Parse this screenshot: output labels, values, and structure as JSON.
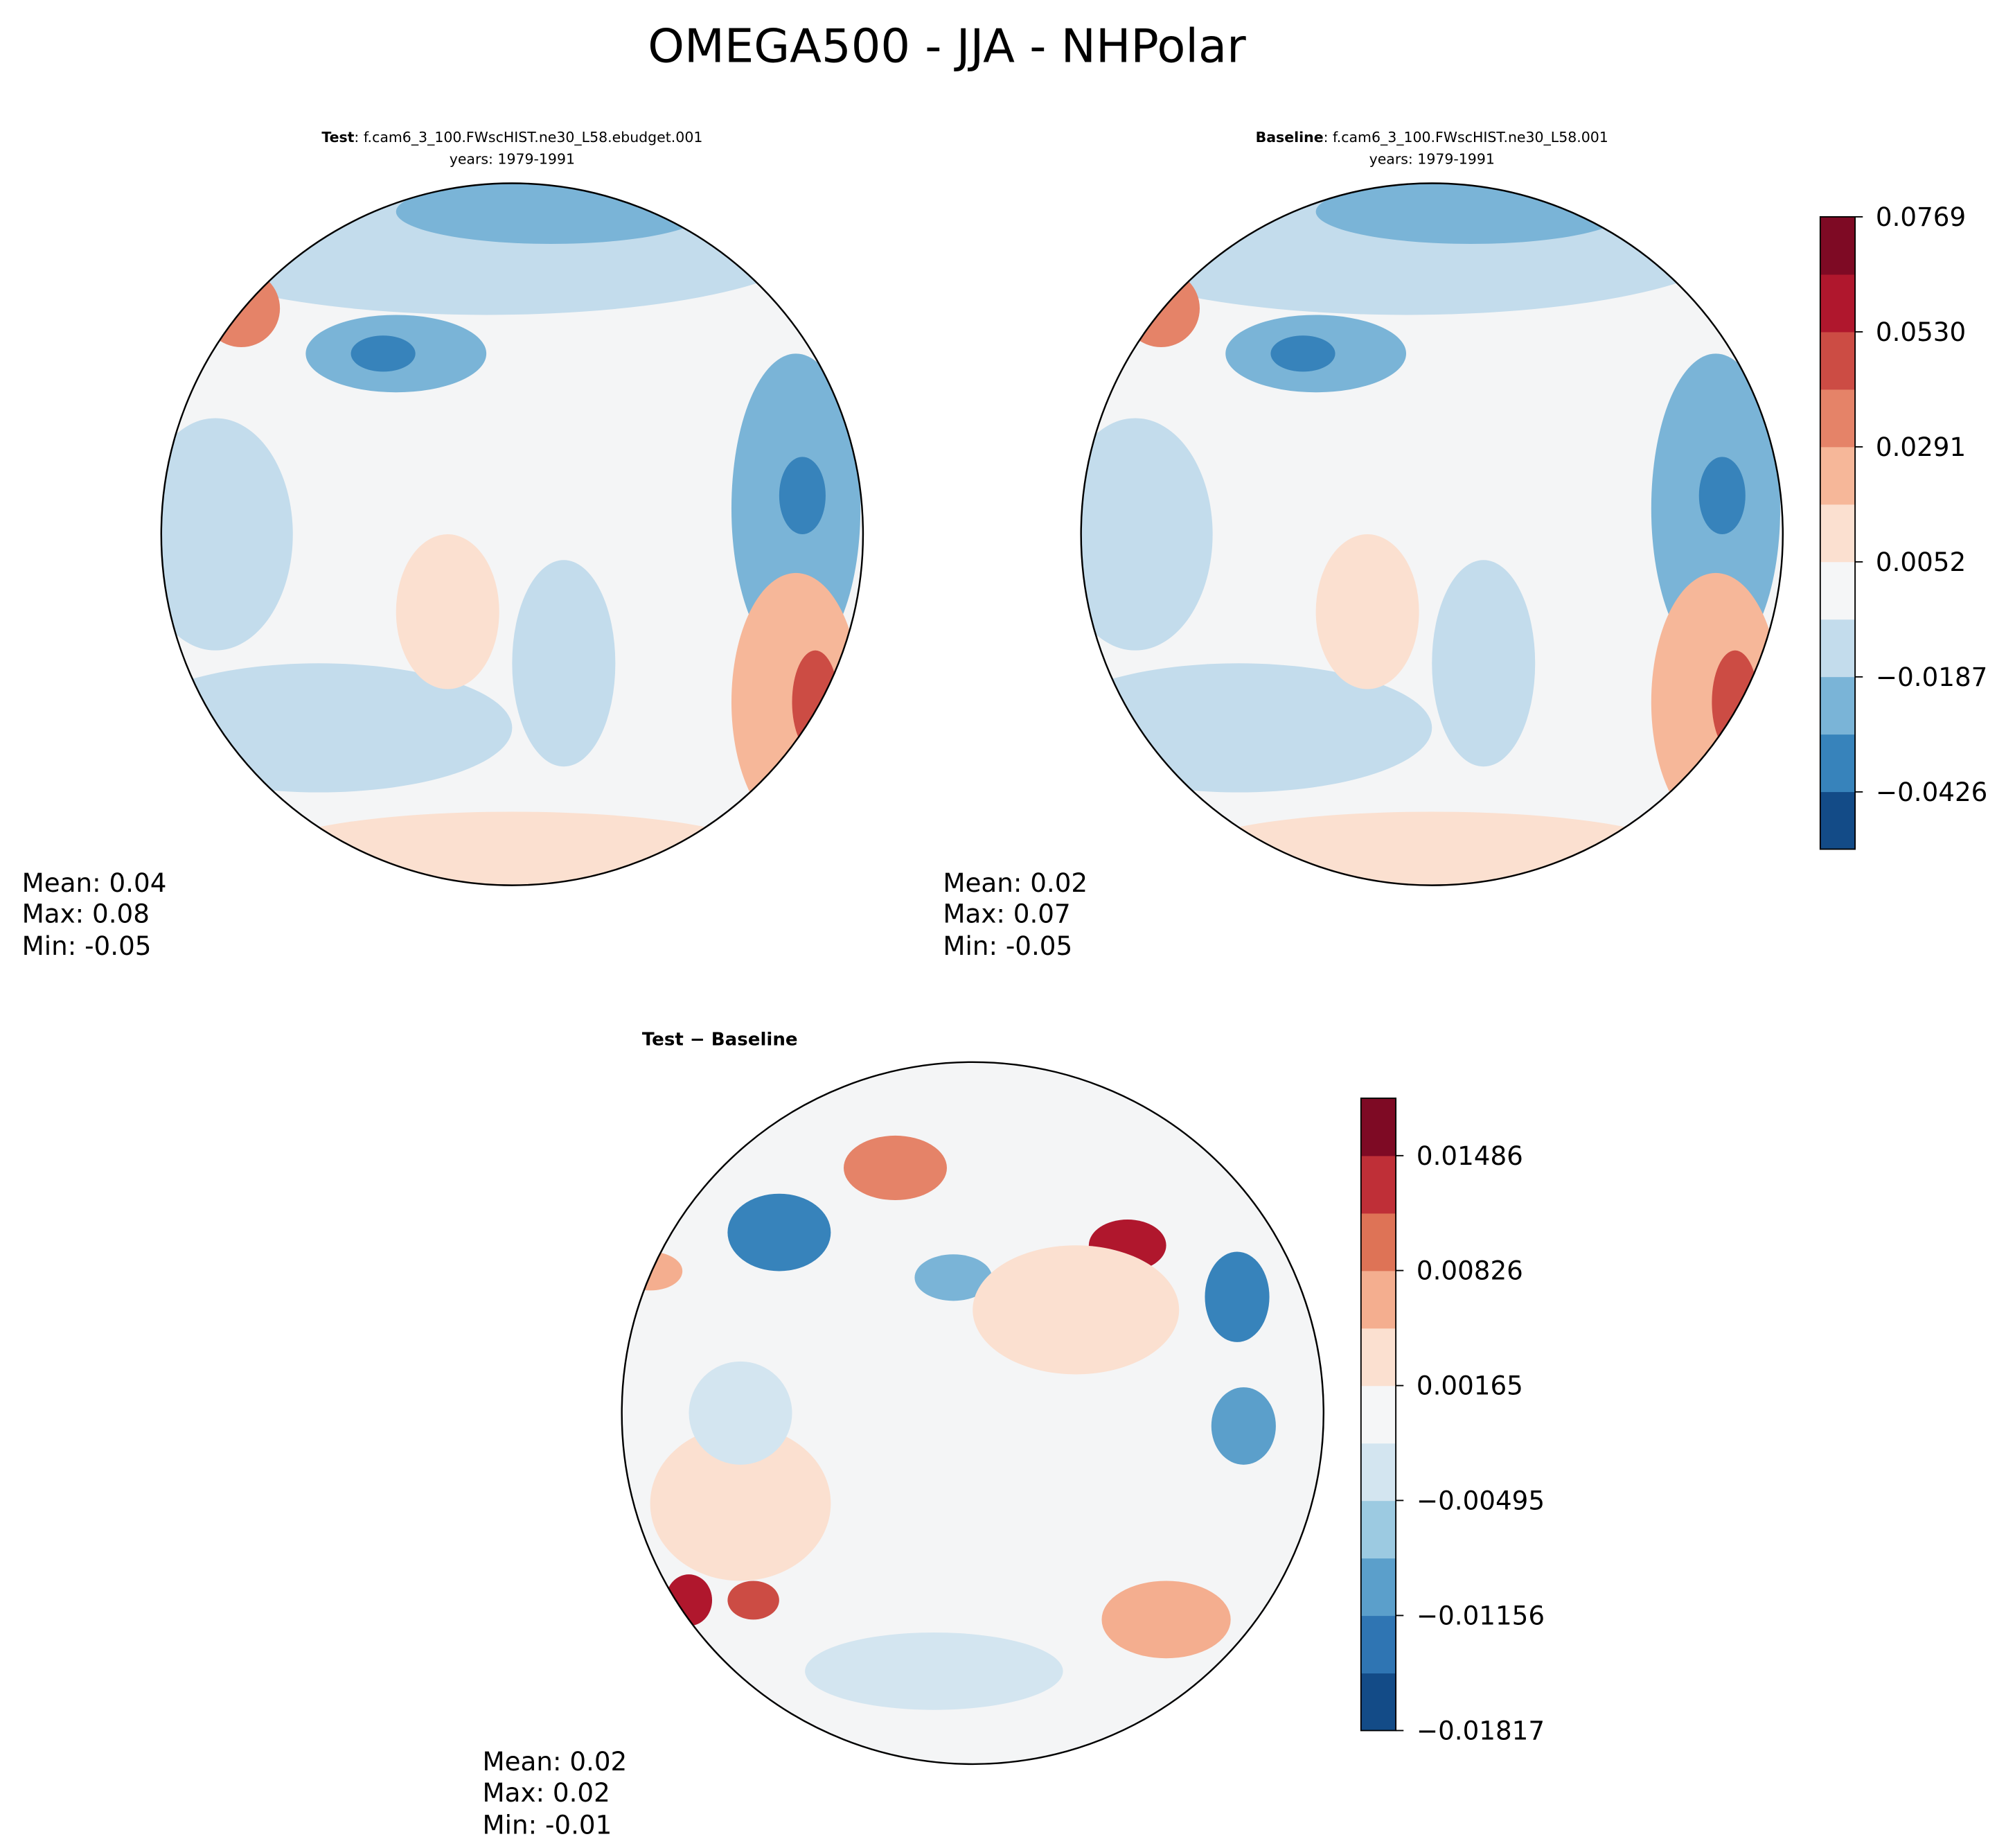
{
  "title": "OMEGA500 - JJA - NHPolar",
  "chart_data": [
    {
      "type": "map",
      "title_bold": "Test",
      "title": ": f.cam6_3_100.FWscHIST.ne30_L58.ebudget.001",
      "subtitle": "years: 1979-1991",
      "stats": [
        "Mean:  0.04",
        "Max:  0.08",
        "Min: -0.05"
      ]
    },
    {
      "type": "map",
      "title_bold": "Baseline",
      "title": ": f.cam6_3_100.FWscHIST.ne30_L58.001",
      "subtitle": "years: 1979-1991",
      "stats": [
        "Mean:  0.02",
        "Max:  0.07",
        "Min: -0.05"
      ]
    },
    {
      "type": "map",
      "title_bold": "Test − Baseline",
      "stats": [
        "Mean:  0.02",
        "Max:  0.02",
        "Min: -0.01"
      ]
    },
    {
      "type": "colorbar",
      "ylim": [
        -0.0545,
        0.0769
      ],
      "yticks": [
        {
          "value": -0.0426,
          "label": "−0.0426"
        },
        {
          "value": -0.0187,
          "label": "−0.0187"
        },
        0.0052,
        0.0291,
        {
          "value": 0.053,
          "label": "0.0530"
        },
        0.0769
      ],
      "colors": [
        "#134b87",
        "#3783bb",
        "#7ab4d7",
        "#c3dcec",
        "#f5f6f7",
        "#fbe0d0",
        "#f6b799",
        "#e58368",
        "#cc4c44",
        "#b0172d",
        "#7e0a24"
      ]
    },
    {
      "type": "colorbar",
      "ylim": [
        -0.01817,
        0.01816
      ],
      "yticks": [
        {
          "value": -0.01817,
          "label": "−0.01817"
        },
        {
          "value": -0.01156,
          "label": "−0.01156"
        },
        {
          "value": -0.00495,
          "label": "−0.00495"
        },
        0.00165,
        0.00826,
        0.01486
      ],
      "colors": [
        "#134b87",
        "#2f75b3",
        "#5b9fcb",
        "#9ccae1",
        "#d3e5f0",
        "#f5f6f7",
        "#fbe0d0",
        "#f4ae8f",
        "#de7356",
        "#bf2f37",
        "#7e0a24"
      ]
    }
  ]
}
